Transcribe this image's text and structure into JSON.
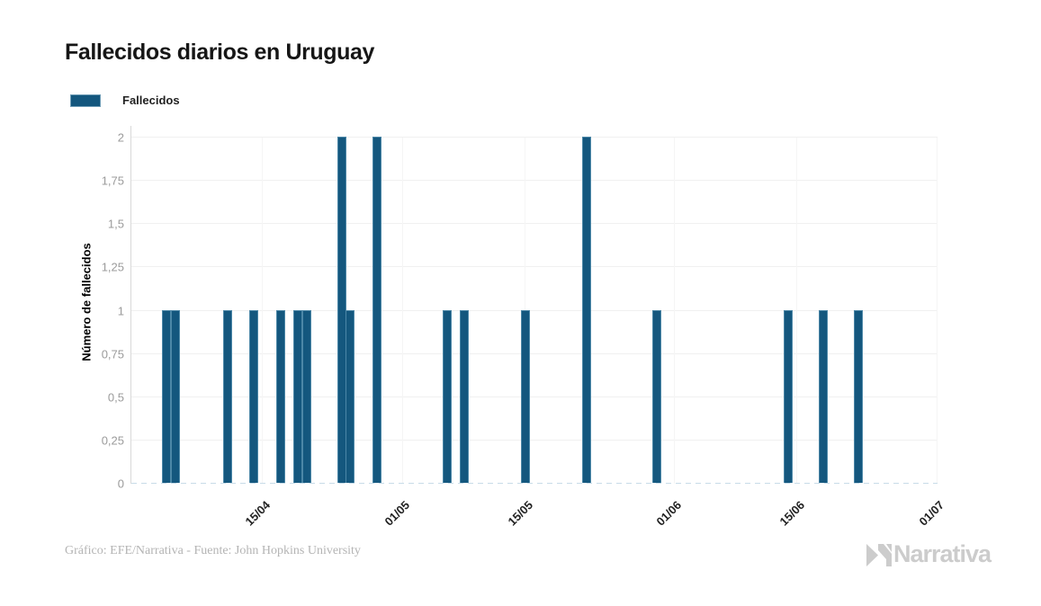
{
  "title": "Fallecidos diarios en Uruguay",
  "legend": {
    "label": "Fallecidos"
  },
  "footer": {
    "credit": "Gráfico: EFE/Narrativa - Fuente: John Hopkins University"
  },
  "branding": {
    "name": "Narrativa"
  },
  "colors": {
    "bar_fill": "#14577e",
    "bar_border": "#4c87a7",
    "grid": "#f0f0f0",
    "axis_line": "#d9d9d9",
    "zero_dash": "#c8dce8",
    "y_label": "#9b9b9b",
    "x_label": "#222222",
    "title": "#161616",
    "footer": "#b4b4b4",
    "logo": "#cccccc"
  },
  "chart_data": {
    "type": "bar",
    "title": "Fallecidos diarios en Uruguay",
    "series_name": "Fallecidos",
    "xlabel": "",
    "ylabel": "Número de fallecidos",
    "ylim": [
      0,
      2
    ],
    "grid": true,
    "legend_position": "top-left",
    "y_ticks": [
      {
        "v": 0,
        "label": "0"
      },
      {
        "v": 0.25,
        "label": "0,25"
      },
      {
        "v": 0.5,
        "label": "0,5"
      },
      {
        "v": 0.75,
        "label": "0,75"
      },
      {
        "v": 1,
        "label": "1"
      },
      {
        "v": 1.25,
        "label": "1,25"
      },
      {
        "v": 1.5,
        "label": "1,5"
      },
      {
        "v": 1.75,
        "label": "1,75"
      },
      {
        "v": 2,
        "label": "2"
      }
    ],
    "x_axis": {
      "start": "31/03",
      "end": "01/07",
      "tick_labels": [
        "15/04",
        "01/05",
        "15/05",
        "01/06",
        "15/06",
        "01/07"
      ]
    },
    "bars": [
      {
        "date": "04/04",
        "value": 1
      },
      {
        "date": "05/04",
        "value": 1
      },
      {
        "date": "11/04",
        "value": 1
      },
      {
        "date": "14/04",
        "value": 1
      },
      {
        "date": "17/04",
        "value": 1
      },
      {
        "date": "19/04",
        "value": 1
      },
      {
        "date": "20/04",
        "value": 1
      },
      {
        "date": "24/04",
        "value": 2
      },
      {
        "date": "25/04",
        "value": 1
      },
      {
        "date": "28/04",
        "value": 2
      },
      {
        "date": "06/05",
        "value": 1
      },
      {
        "date": "08/05",
        "value": 1
      },
      {
        "date": "15/05",
        "value": 1
      },
      {
        "date": "22/05",
        "value": 2
      },
      {
        "date": "30/05",
        "value": 1
      },
      {
        "date": "14/06",
        "value": 1
      },
      {
        "date": "18/06",
        "value": 1
      },
      {
        "date": "22/06",
        "value": 1
      }
    ]
  }
}
